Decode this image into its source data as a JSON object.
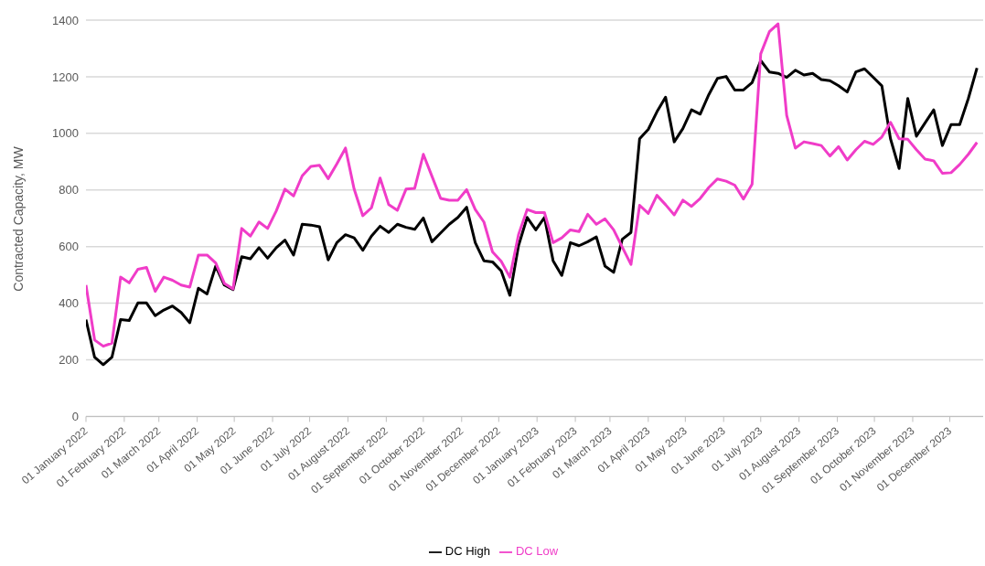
{
  "chart_data": {
    "type": "line",
    "ylabel": "Contracted Capacity, MW",
    "x": [
      "2022-01-01",
      "2022-01-08",
      "2022-01-15",
      "2022-01-22",
      "2022-01-29",
      "2022-02-05",
      "2022-02-12",
      "2022-02-19",
      "2022-02-26",
      "2022-03-05",
      "2022-03-12",
      "2022-03-19",
      "2022-03-26",
      "2022-04-02",
      "2022-04-09",
      "2022-04-16",
      "2022-04-23",
      "2022-04-30",
      "2022-05-07",
      "2022-05-14",
      "2022-05-21",
      "2022-05-28",
      "2022-06-04",
      "2022-06-11",
      "2022-06-18",
      "2022-06-25",
      "2022-07-02",
      "2022-07-09",
      "2022-07-16",
      "2022-07-23",
      "2022-07-30",
      "2022-08-06",
      "2022-08-13",
      "2022-08-20",
      "2022-08-27",
      "2022-09-03",
      "2022-09-10",
      "2022-09-17",
      "2022-09-24",
      "2022-10-01",
      "2022-10-08",
      "2022-10-15",
      "2022-10-22",
      "2022-10-29",
      "2022-11-05",
      "2022-11-12",
      "2022-11-19",
      "2022-11-26",
      "2022-12-03",
      "2022-12-10",
      "2022-12-17",
      "2022-12-24",
      "2022-12-31",
      "2023-01-07",
      "2023-01-14",
      "2023-01-21",
      "2023-01-28",
      "2023-02-04",
      "2023-02-11",
      "2023-02-18",
      "2023-02-25",
      "2023-03-04",
      "2023-03-11",
      "2023-03-18",
      "2023-03-25",
      "2023-04-01",
      "2023-04-08",
      "2023-04-15",
      "2023-04-22",
      "2023-04-29",
      "2023-05-06",
      "2023-05-13",
      "2023-05-20",
      "2023-05-27",
      "2023-06-03",
      "2023-06-10",
      "2023-06-17",
      "2023-06-24",
      "2023-07-01",
      "2023-07-08",
      "2023-07-15",
      "2023-07-22",
      "2023-07-29",
      "2023-08-05",
      "2023-08-12",
      "2023-08-19",
      "2023-08-26",
      "2023-09-02",
      "2023-09-09",
      "2023-09-16",
      "2023-09-23",
      "2023-09-30",
      "2023-10-07",
      "2023-10-14",
      "2023-10-21",
      "2023-10-28",
      "2023-11-04",
      "2023-11-11",
      "2023-11-18",
      "2023-11-25",
      "2023-12-02",
      "2023-12-09",
      "2023-12-16",
      "2023-12-23"
    ],
    "series": [
      {
        "name": "DC High",
        "color": "#000000",
        "values": [
          342,
          209,
          183,
          209,
          342,
          339,
          401,
          401,
          356,
          376,
          390,
          367,
          331,
          453,
          433,
          531,
          464,
          448,
          564,
          557,
          596,
          559,
          596,
          623,
          570,
          679,
          676,
          670,
          553,
          614,
          642,
          631,
          587,
          637,
          672,
          650,
          679,
          668,
          661,
          701,
          617,
          648,
          679,
          703,
          739,
          614,
          550,
          546,
          514,
          428,
          603,
          703,
          659,
          703,
          550,
          498,
          614,
          603,
          617,
          634,
          531,
          509,
          626,
          650,
          981,
          1014,
          1076,
          1128,
          970,
          1017,
          1083,
          1068,
          1137,
          1194,
          1201,
          1153,
          1153,
          1179,
          1257,
          1217,
          1212,
          1198,
          1223,
          1206,
          1212,
          1190,
          1186,
          1168,
          1146,
          1217,
          1228,
          1198,
          1168,
          981,
          876,
          1123,
          990,
          1037,
          1083,
          957,
          1031,
          1031,
          1123,
          1231
        ]
      },
      {
        "name": "DC Low",
        "color": "#f03cc8",
        "values": [
          464,
          270,
          248,
          259,
          492,
          472,
          520,
          526,
          442,
          492,
          481,
          464,
          457,
          570,
          570,
          542,
          470,
          450,
          664,
          637,
          687,
          664,
          726,
          803,
          779,
          850,
          883,
          887,
          840,
          892,
          948,
          803,
          709,
          737,
          842,
          748,
          728,
          803,
          806,
          926,
          848,
          770,
          764,
          764,
          801,
          731,
          687,
          581,
          548,
          492,
          642,
          731,
          720,
          720,
          614,
          631,
          659,
          653,
          714,
          679,
          698,
          659,
          598,
          537,
          746,
          717,
          781,
          748,
          712,
          764,
          742,
          770,
          809,
          839,
          831,
          817,
          768,
          820,
          1281,
          1359,
          1387,
          1064,
          948,
          970,
          964,
          957,
          920,
          953,
          906,
          942,
          972,
          961,
          987,
          1039,
          981,
          979,
          942,
          909,
          903,
          859,
          861,
          890,
          926,
          968
        ]
      }
    ],
    "xlim": [
      "2022-01-01",
      "2023-12-28"
    ],
    "xticks": [
      {
        "value": "2022-01-01",
        "label": "01 January 2022"
      },
      {
        "value": "2022-02-01",
        "label": "01 February 2022"
      },
      {
        "value": "2022-03-01",
        "label": "01 March 2022"
      },
      {
        "value": "2022-04-01",
        "label": "01 April 2022"
      },
      {
        "value": "2022-05-01",
        "label": "01 May 2022"
      },
      {
        "value": "2022-06-01",
        "label": "01 June 2022"
      },
      {
        "value": "2022-07-01",
        "label": "01 July 2022"
      },
      {
        "value": "2022-08-01",
        "label": "01 August 2022"
      },
      {
        "value": "2022-09-01",
        "label": "01 September 2022"
      },
      {
        "value": "2022-10-01",
        "label": "01 October 2022"
      },
      {
        "value": "2022-11-01",
        "label": "01 November 2022"
      },
      {
        "value": "2022-12-01",
        "label": "01 December 2022"
      },
      {
        "value": "2023-01-01",
        "label": "01 January 2023"
      },
      {
        "value": "2023-02-01",
        "label": "01 February 2023"
      },
      {
        "value": "2023-03-01",
        "label": "01 March 2023"
      },
      {
        "value": "2023-04-01",
        "label": "01 April 2023"
      },
      {
        "value": "2023-05-01",
        "label": "01 May 2023"
      },
      {
        "value": "2023-06-01",
        "label": "01 June 2023"
      },
      {
        "value": "2023-07-01",
        "label": "01 July 2023"
      },
      {
        "value": "2023-08-01",
        "label": "01 August 2023"
      },
      {
        "value": "2023-09-01",
        "label": "01 September 2023"
      },
      {
        "value": "2023-10-01",
        "label": "01 October 2023"
      },
      {
        "value": "2023-11-01",
        "label": "01 November 2023"
      },
      {
        "value": "2023-12-01",
        "label": "01 December 2023"
      }
    ],
    "ylim": [
      0,
      1400
    ],
    "yticks": [
      0,
      200,
      400,
      600,
      800,
      1000,
      1200,
      1400
    ],
    "grid": "y",
    "legend": "bottom",
    "marker": "none",
    "line_style": "solid"
  }
}
